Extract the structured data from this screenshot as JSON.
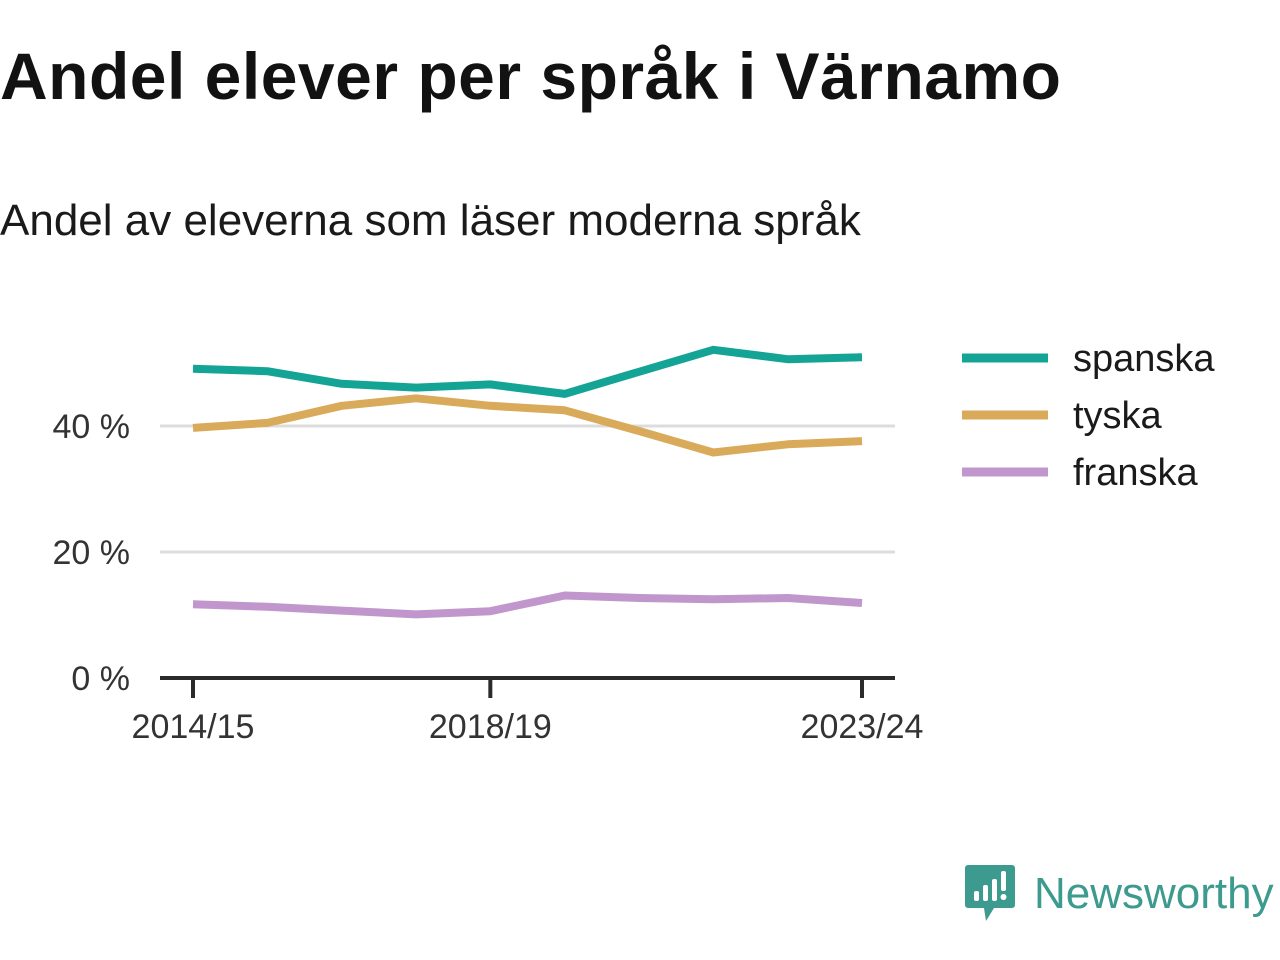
{
  "title": "Andel elever per språk i Värnamo",
  "subtitle": "Andel av eleverna som läser moderna språk",
  "brand": {
    "name": "Newsworthy",
    "color": "#3c9a8e",
    "icon": "newsworthy-logo-icon"
  },
  "chart_data": {
    "type": "line",
    "x": [
      "2014/15",
      "2015/16",
      "2016/17",
      "2017/18",
      "2018/19",
      "2019/20",
      "2020/21",
      "2021/22",
      "2022/23",
      "2023/24"
    ],
    "x_tick_labels": [
      "2014/15",
      "2018/19",
      "2023/24"
    ],
    "y_tick_labels": [
      "0 %",
      "20 %",
      "40 %"
    ],
    "y_ticks": [
      0,
      20,
      40
    ],
    "ylim": [
      0,
      55
    ],
    "grid": true,
    "legend_position": "right",
    "series": [
      {
        "name": "spanska",
        "color": "#13a496",
        "values": [
          49.1,
          48.7,
          46.7,
          46.1,
          46.6,
          45.1,
          48.6,
          52.1,
          50.6,
          50.9
        ]
      },
      {
        "name": "tyska",
        "color": "#d9aa5a",
        "values": [
          39.7,
          40.5,
          43.2,
          44.4,
          43.2,
          42.5,
          39.2,
          35.8,
          37.1,
          37.6
        ]
      },
      {
        "name": "franska",
        "color": "#c096cc",
        "values": [
          11.7,
          11.3,
          10.7,
          10.1,
          10.6,
          13.1,
          12.7,
          12.5,
          12.7,
          11.9
        ]
      }
    ]
  }
}
